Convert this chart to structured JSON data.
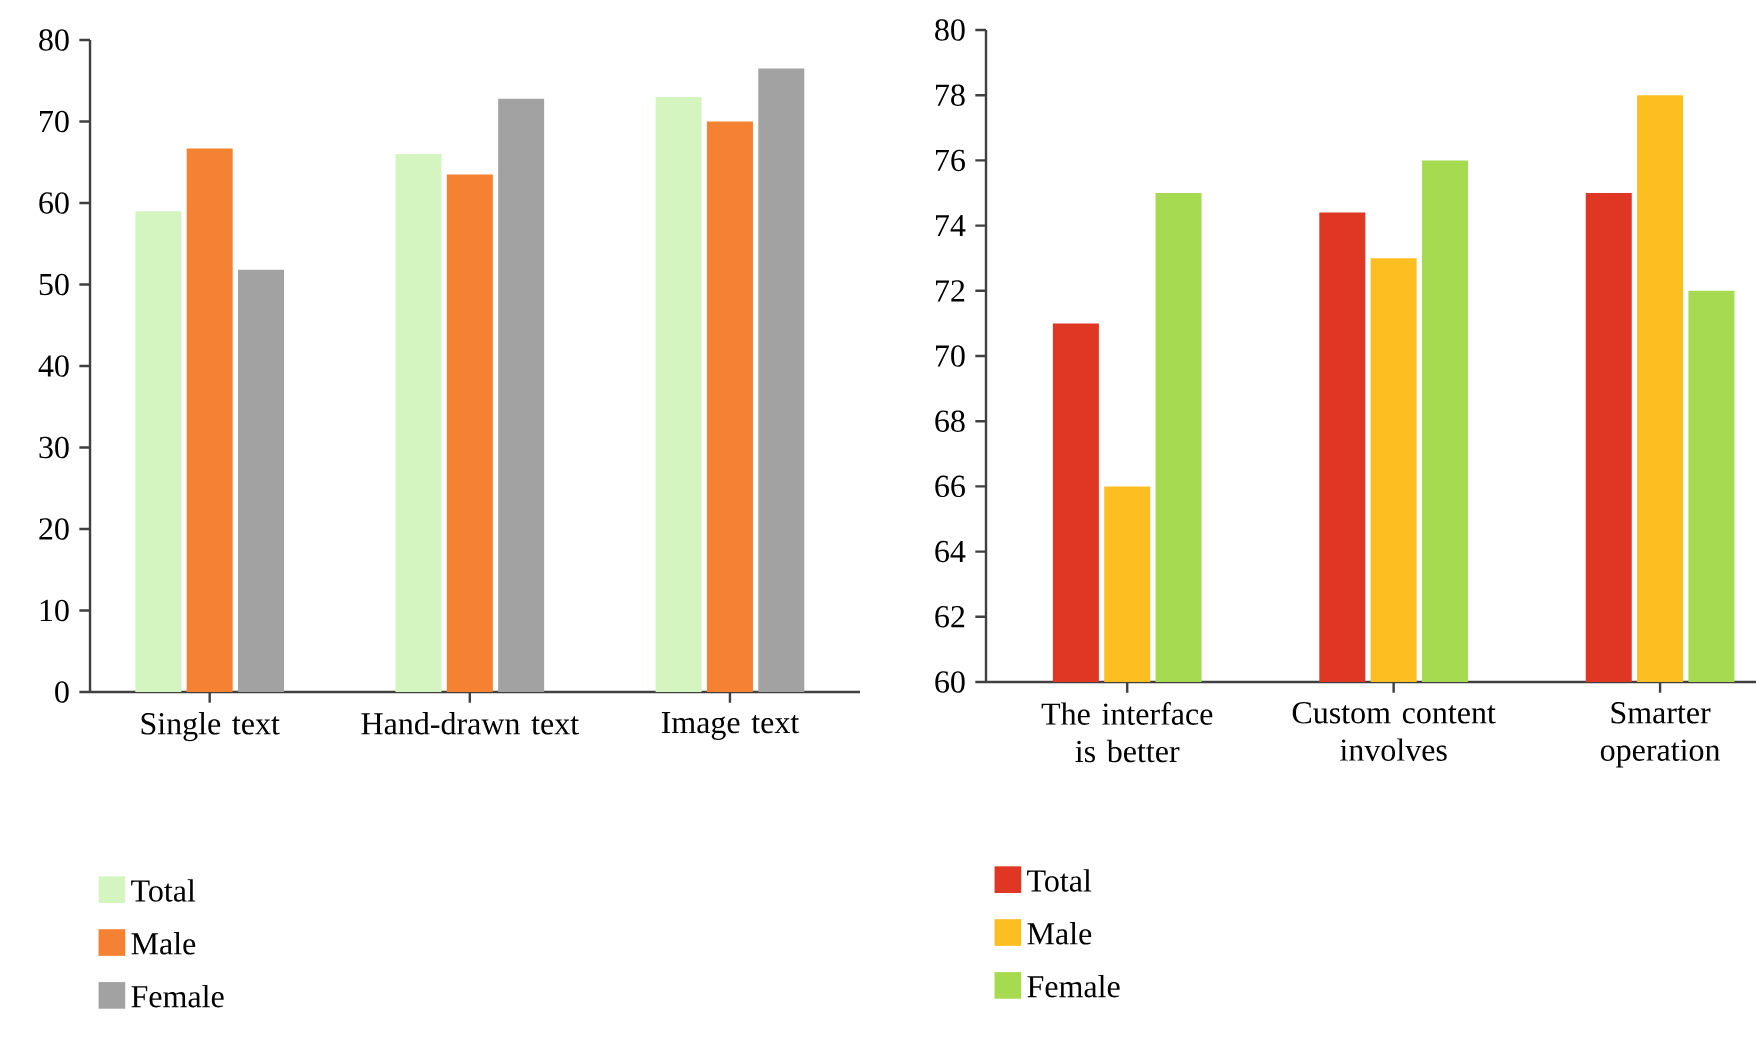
{
  "chart_data": [
    {
      "type": "bar",
      "categories": [
        "Single text",
        "Hand-drawn text",
        "Image text"
      ],
      "series": [
        {
          "name": "Total",
          "color": "#d5f5c0",
          "values": [
            59,
            66,
            73
          ]
        },
        {
          "name": "Male",
          "color": "#f48232",
          "values": [
            66.7,
            63.5,
            70
          ]
        },
        {
          "name": "Female",
          "color": "#a2a2a2",
          "values": [
            51.8,
            72.8,
            76.5
          ]
        }
      ],
      "ylim": [
        0,
        80
      ],
      "yticks": [
        0,
        10,
        20,
        30,
        40,
        50,
        60,
        70,
        80
      ],
      "legend": "bottom left"
    },
    {
      "type": "bar",
      "categories": [
        "The interface is better",
        "Custom content involves",
        "Smarter operation"
      ],
      "series": [
        {
          "name": "Total",
          "color": "#e03624",
          "values": [
            71,
            74.4,
            75
          ]
        },
        {
          "name": "Male",
          "color": "#fcbe21",
          "values": [
            66,
            73,
            78
          ]
        },
        {
          "name": "Female",
          "color": "#a6da50",
          "values": [
            75,
            76,
            72
          ]
        }
      ],
      "ylim": [
        60,
        80
      ],
      "yticks": [
        60,
        62,
        64,
        66,
        68,
        70,
        72,
        74,
        76,
        78,
        80
      ],
      "legend": "bottom left"
    }
  ]
}
